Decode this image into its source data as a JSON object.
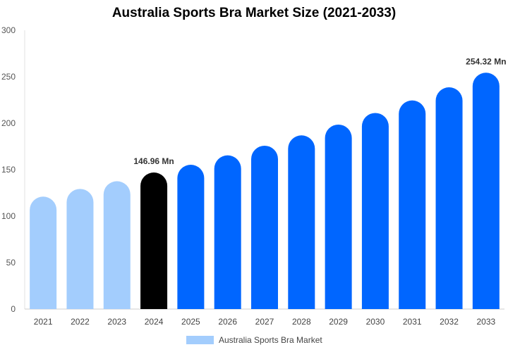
{
  "chart_data": {
    "type": "bar",
    "title": "Australia Sports Bra Market Size (2021-2033)",
    "categories": [
      "2021",
      "2022",
      "2023",
      "2024",
      "2025",
      "2026",
      "2027",
      "2028",
      "2029",
      "2030",
      "2031",
      "2032",
      "2033"
    ],
    "series": [
      {
        "name": "Australia Sports Bra Market",
        "values": [
          121,
          129.3,
          137.6,
          146.96,
          155.3,
          165.4,
          175.8,
          186.9,
          198.5,
          211,
          224.5,
          238.6,
          254.32
        ]
      }
    ],
    "data_labels": {
      "3": "146.96 Mn",
      "12": "254.32 Mn"
    },
    "ylim": [
      0,
      300
    ],
    "yticks": [
      0,
      50,
      100,
      150,
      200,
      250,
      300
    ],
    "grid": false,
    "legend": "bottom",
    "colors": {
      "historical": "#a3cdfd",
      "current": "#000000",
      "forecast": "#0066ff"
    }
  }
}
